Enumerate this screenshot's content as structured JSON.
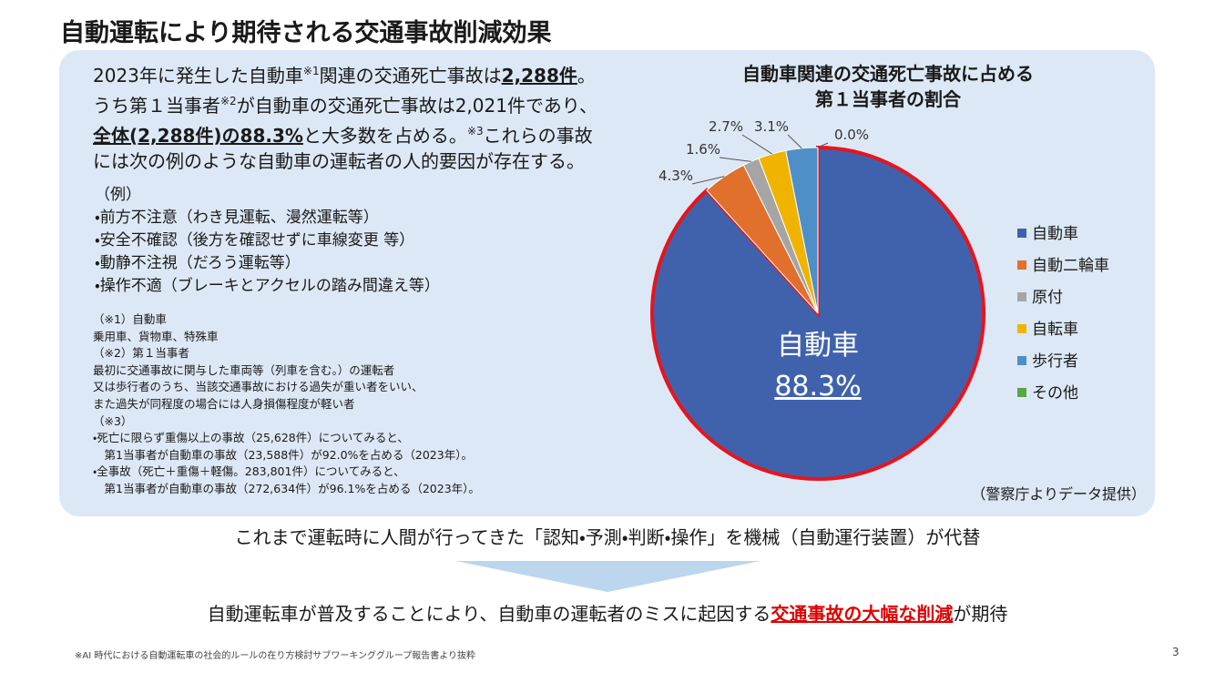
{
  "title": "自動運転により期待される交通事故削減効果",
  "intro": {
    "lines": [
      [
        "2023年に発生した自動車",
        "※1",
        "関連の交通死亡事故は",
        "2,288件",
        "。"
      ],
      [
        "うち第１当事者",
        "※2",
        "が自動車の交通死亡事故は2,021件であり、"
      ],
      [
        "全体(2,288件)の88.3%",
        "と大多数を占める。",
        "※3",
        "これらの事故"
      ],
      [
        "には次の例のような自動車の運転者の人的要因が存在する。"
      ]
    ]
  },
  "examples": [
    "（例）",
    "・前方不注意（わき見運転、漫然運転等）",
    "・安全不確認（後方を確認せずに車線変更 等）",
    "・動静不注視（だろう運転等）",
    "・操作不適（ブレーキとアクセルの踏み間違え等）"
  ],
  "notes": [
    "（※1）自動車",
    "乗用車、貨物車、特殊車",
    "（※2）第１当事者",
    "最初に交通事故に関与した車両等（列車を含む。）の運転者",
    "又は歩行者のうち、当該交通事故における過失が重い者をいい、",
    "また過失が同程度の場合には人身損傷程度が軽い者",
    "（※3）",
    "・死亡に限らず重傷以上の事故（25,628件）についてみると、",
    "　第1当事者が自動車の事故（23,588件）が92.0%を占める（2023年）。",
    "・全事故（死亡＋重傷＋軽傷。283,801件）についてみると、",
    "　第1当事者が自動車の事故（272,634件）が96.1%を占める（2023年）。"
  ],
  "chart_data": {
    "type": "pie",
    "title_lines": [
      "自動車関連の交通死亡事故に占める",
      "第１当事者の割合"
    ],
    "categories": [
      "自動車",
      "自動二輪車",
      "原付",
      "自転車",
      "歩行者",
      "その他"
    ],
    "values": [
      88.3,
      4.3,
      1.6,
      2.7,
      3.1,
      0.0
    ],
    "value_labels": [
      "88.3%",
      "4.3%",
      "1.6%",
      "2.7%",
      "3.1%",
      "0.0%"
    ],
    "colors": [
      "#4062ad",
      "#e0702b",
      "#a5a5a5",
      "#f0b400",
      "#4e8fc8",
      "#5aa545"
    ],
    "source": "（警察庁よりデータ提供）"
  },
  "statement": "これまで運転時に人間が行ってきた「認知・予測・判断・操作」を機械（自動運行装置）が代替",
  "conclusion": [
    "自動運転車が普及することにより、自動車の運転者のミスに起因する",
    "交通事故の大幅な削減",
    "が期待"
  ],
  "footnote": "※AI 時代における自動運転車の社会的ルールの在り方検討サブワーキンググループ報告書より抜粋",
  "page_number": "3"
}
